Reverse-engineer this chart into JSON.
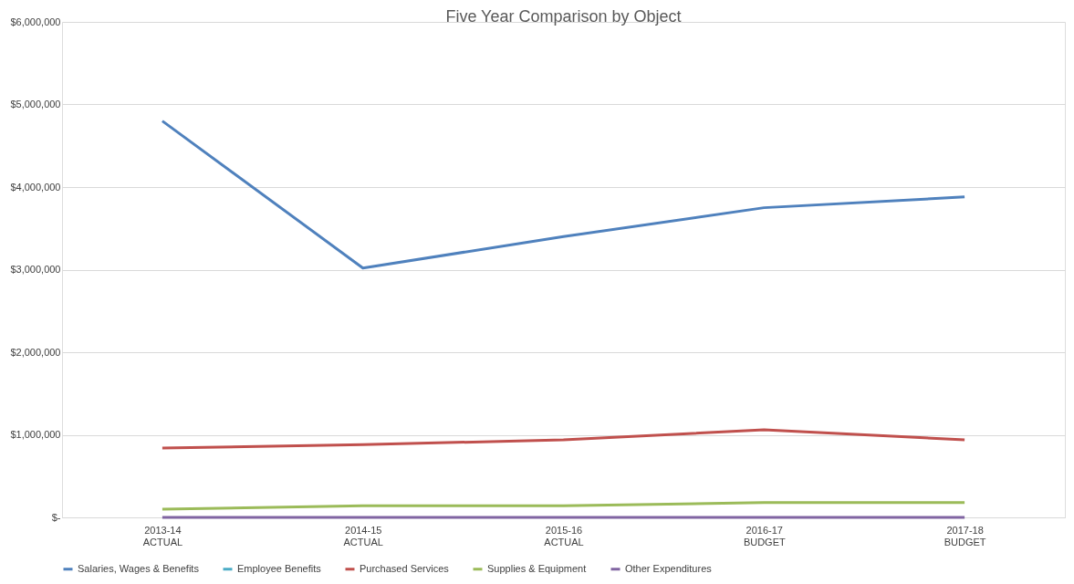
{
  "chart_data": {
    "type": "line",
    "title": "Five Year Comparison by Object",
    "categories": [
      "2013-14 ACTUAL",
      "2014-15 ACTUAL",
      "2015-16 ACTUAL",
      "2016-17 BUDGET",
      "2017-18 BUDGET"
    ],
    "series": [
      {
        "name": "Salaries, Wages & Benefits",
        "color": "#4f81bd",
        "values": [
          4800000,
          3020000,
          3400000,
          3750000,
          3880000
        ]
      },
      {
        "name": "Employee Benefits",
        "color": "#4bacc6",
        "values": [
          null,
          null,
          null,
          null,
          null
        ]
      },
      {
        "name": "Purchased Services",
        "color": "#c0504d",
        "values": [
          840000,
          880000,
          940000,
          1060000,
          940000
        ]
      },
      {
        "name": "Supplies & Equipment",
        "color": "#9bbb59",
        "values": [
          100000,
          140000,
          140000,
          180000,
          180000
        ]
      },
      {
        "name": "Other Expenditures",
        "color": "#8064a2",
        "values": [
          0,
          0,
          0,
          0,
          0
        ]
      }
    ],
    "ylim": [
      0,
      6000000
    ],
    "yticks": [
      {
        "value": 0,
        "label": "$-"
      },
      {
        "value": 1000000,
        "label": "$1,000,000"
      },
      {
        "value": 2000000,
        "label": "$2,000,000"
      },
      {
        "value": 3000000,
        "label": "$3,000,000"
      },
      {
        "value": 4000000,
        "label": "$4,000,000"
      },
      {
        "value": 5000000,
        "label": "$5,000,000"
      },
      {
        "value": 6000000,
        "label": "$6,000,000"
      }
    ],
    "grid": "y",
    "legend": "bottom",
    "marker": "none",
    "line_style": "solid"
  }
}
